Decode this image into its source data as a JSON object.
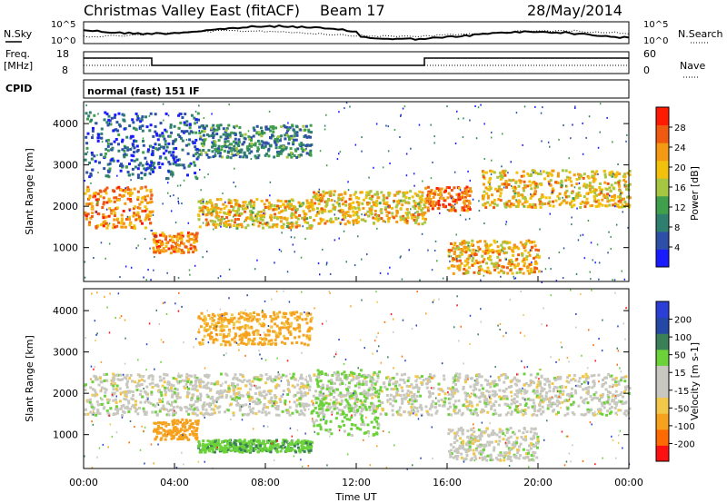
{
  "header": {
    "station": "Christmas Valley East (fitACF)",
    "beam": "Beam 17",
    "date": "28/May/2014",
    "mode": "normal (fast) 151 IF"
  },
  "side_labels": {
    "nsky": "N.Sky",
    "nsearch": "N.Search",
    "freq": "Freq.",
    "freq_unit": "[MHz]",
    "nave": "Nave",
    "cpid": "CPID"
  },
  "strip_ticks": {
    "noise_left": [
      "10^5",
      "10^0"
    ],
    "noise_right": [
      "10^5",
      "10^0"
    ],
    "freq_left": [
      "18",
      "8"
    ],
    "nave_right": [
      "60",
      "0"
    ]
  },
  "colors": {
    "power": [
      "#1a1aff",
      "#2d4fa8",
      "#2f7f6f",
      "#3f9f4a",
      "#a6c641",
      "#f2c10b",
      "#f39a12",
      "#f05a10",
      "#ff1a00"
    ],
    "velocity": [
      "#ff1010",
      "#ff6a00",
      "#f6a21e",
      "#f2c84a",
      "#c8c8c0",
      "#c8c8c0",
      "#6bd23a",
      "#3a7f57",
      "#2448a6",
      "#2b3fd6"
    ]
  },
  "chart_data": [
    {
      "type": "heatmap",
      "name": "power",
      "ylabel": "Slant Range [km]",
      "xlabel": "Time UT",
      "xlim_hours": [
        0,
        24
      ],
      "ylim": [
        180,
        4530
      ],
      "yticks": [
        "1000",
        "2000",
        "3000",
        "4000"
      ],
      "xticks": [
        "00:00",
        "04:00",
        "08:00",
        "12:00",
        "16:00",
        "20:00",
        "00:00"
      ],
      "colorbar": {
        "label": "Power [dB]",
        "ticks": [
          "4",
          "8",
          "12",
          "16",
          "20",
          "24",
          "28"
        ],
        "range": [
          0,
          32
        ]
      },
      "echo_bands": [
        {
          "t0": 0.0,
          "t1": 3.0,
          "r0": 1500,
          "r1": 2500,
          "level": 26
        },
        {
          "t0": 3.0,
          "t1": 5.0,
          "r0": 900,
          "r1": 1400,
          "level": 26
        },
        {
          "t0": 5.0,
          "t1": 10.0,
          "r0": 1500,
          "r1": 2200,
          "level": 22
        },
        {
          "t0": 10.0,
          "t1": 15.0,
          "r0": 1600,
          "r1": 2400,
          "level": 22
        },
        {
          "t0": 15.0,
          "t1": 17.0,
          "r0": 1900,
          "r1": 2500,
          "level": 28
        },
        {
          "t0": 16.0,
          "t1": 20.0,
          "r0": 400,
          "r1": 1200,
          "level": 24
        },
        {
          "t0": 17.5,
          "t1": 24.0,
          "r0": 2000,
          "r1": 2900,
          "level": 22
        },
        {
          "t0": 5.0,
          "t1": 10.0,
          "r0": 3200,
          "r1": 4000,
          "level": 12
        },
        {
          "t0": 0.0,
          "t1": 5.0,
          "r0": 2700,
          "r1": 4300,
          "level": 8
        }
      ]
    },
    {
      "type": "heatmap",
      "name": "velocity",
      "ylabel": "Slant Range [km]",
      "xlabel": "Time UT",
      "xlim_hours": [
        0,
        24
      ],
      "ylim": [
        180,
        4530
      ],
      "yticks": [
        "1000",
        "2000",
        "3000",
        "4000"
      ],
      "xticks": [
        "00:00",
        "04:00",
        "08:00",
        "12:00",
        "16:00",
        "20:00",
        "00:00"
      ],
      "colorbar": {
        "label": "Velocity [m s-1]",
        "ticks": [
          "-200",
          "-100",
          "-50",
          "-15",
          "15",
          "50",
          "100",
          "200"
        ]
      },
      "echo_bands": [
        {
          "t0": 0.0,
          "t1": 24.0,
          "r0": 1500,
          "r1": 2500,
          "velocity": 0
        },
        {
          "t0": 3.0,
          "t1": 5.0,
          "r0": 900,
          "r1": 1400,
          "velocity": -80
        },
        {
          "t0": 5.0,
          "t1": 10.0,
          "r0": 600,
          "r1": 900,
          "velocity": 40
        },
        {
          "t0": 10.0,
          "t1": 13.0,
          "r0": 1000,
          "r1": 2600,
          "velocity": 30
        },
        {
          "t0": 16.0,
          "t1": 20.0,
          "r0": 400,
          "r1": 1200,
          "velocity": 0
        },
        {
          "t0": 5.0,
          "t1": 10.0,
          "r0": 3200,
          "r1": 4000,
          "velocity": -60
        }
      ]
    }
  ]
}
